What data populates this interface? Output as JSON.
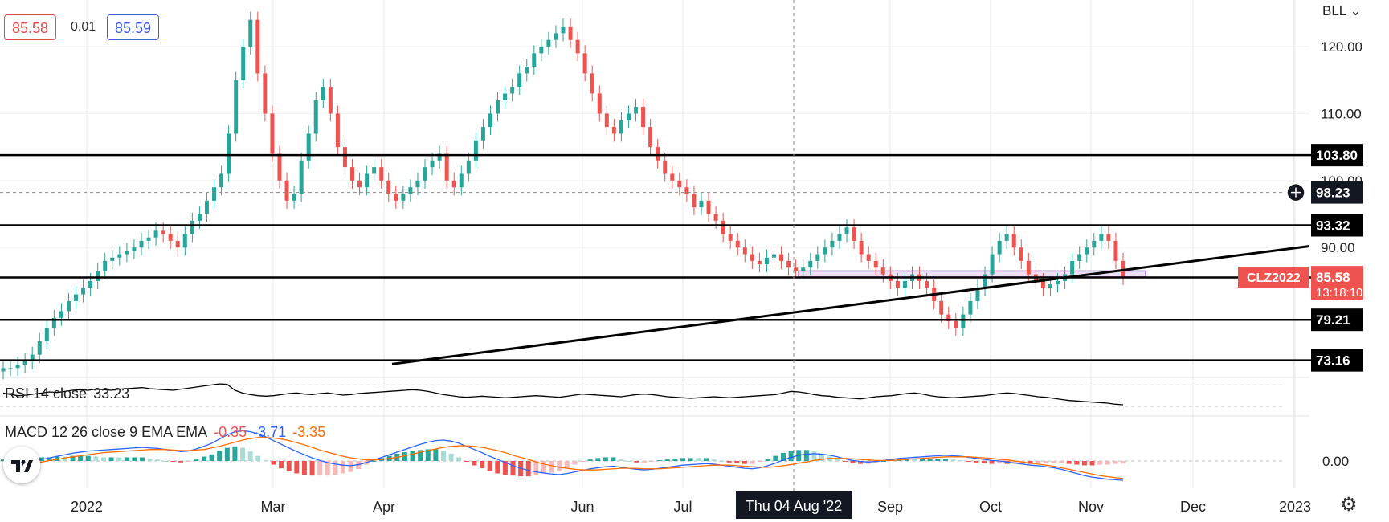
{
  "header": {
    "bid": "85.58",
    "spread": "0.01",
    "ask": "85.59",
    "axis_menu": "BLL"
  },
  "indicators": {
    "rsi_label": "RSI 14 close",
    "rsi_value": "33.23",
    "macd_label": "MACD 12 26 close 9 EMA EMA",
    "macd_hist": "-0.35",
    "macd_line": "-3.71",
    "macd_signal": "-3.35",
    "macd_zero": "0.00"
  },
  "colors": {
    "up": "#26a69a",
    "down": "#ef5350",
    "macd": "#2962ff",
    "signal": "#ff6d00",
    "zone": "#b36adf"
  },
  "chart_data": {
    "type": "candlestick",
    "symbol": "CLZ2022",
    "y_range": [
      70.6,
      126.0
    ],
    "y_ticks": [
      "120.00",
      "110.00",
      "100.00",
      "90.00"
    ],
    "x_labels": [
      "2022",
      "Mar",
      "Apr",
      "Jun",
      "Jul",
      "Sep",
      "Oct",
      "Nov",
      "Dec",
      "2023"
    ],
    "crosshair_label": "Thu 04 Aug '22",
    "last_price": "85.58",
    "countdown": "13:18:10",
    "levels": [
      {
        "label": "103.80",
        "value": 103.8
      },
      {
        "label": "93.32",
        "value": 93.32
      },
      {
        "label": "85.53",
        "value": 85.53
      },
      {
        "label": "79.21",
        "value": 79.21
      },
      {
        "label": "73.16",
        "value": 73.16
      }
    ],
    "crosshair_price": "98.23",
    "support_zone": [
      85.6,
      86.5
    ],
    "trendline": [
      [
        0.0,
        72.6
      ],
      [
        1.0,
        90.2
      ]
    ],
    "series_close": [
      72,
      72,
      72.5,
      73,
      74,
      76,
      78,
      79.5,
      80.5,
      82,
      83,
      84,
      85,
      86.5,
      88,
      88.5,
      89,
      89.5,
      90,
      91,
      91.5,
      92.5,
      92,
      91,
      90,
      92,
      94,
      95,
      97,
      99,
      101,
      107,
      115,
      120,
      124,
      116,
      110,
      104,
      100,
      97,
      98,
      103,
      107,
      112,
      114,
      110,
      105,
      102,
      100,
      99,
      101,
      102,
      100,
      98,
      97,
      98,
      99,
      100,
      102,
      103,
      104,
      100,
      99,
      101,
      103,
      106,
      108,
      110,
      112,
      113,
      114,
      116,
      117,
      119,
      120,
      121,
      122,
      123,
      121,
      119,
      116,
      113,
      110,
      108,
      107,
      109,
      110,
      111,
      108,
      105,
      103,
      101,
      100,
      99,
      98,
      96,
      97,
      95,
      94,
      92,
      91,
      90,
      89,
      88,
      87.5,
      88.5,
      89,
      88,
      87,
      86.5,
      87,
      88,
      89,
      90,
      91,
      92,
      93,
      91,
      89,
      88,
      87,
      86,
      85,
      84,
      85,
      86,
      85,
      84,
      82,
      80,
      79,
      78,
      80,
      82,
      84,
      86,
      89,
      91,
      92,
      90,
      88,
      86,
      85,
      84,
      84.5,
      85,
      86,
      88,
      89,
      90,
      91,
      92,
      91,
      88,
      85.6
    ],
    "rsi": [
      55,
      52,
      50,
      51,
      53,
      55,
      57,
      56,
      58,
      60,
      61,
      60,
      62,
      61,
      60,
      62,
      63,
      64,
      65,
      63,
      62,
      61,
      60,
      62,
      64,
      66,
      68,
      70,
      72,
      71,
      60,
      55,
      52,
      50,
      49,
      50,
      52,
      54,
      55,
      53,
      52,
      54,
      55,
      53,
      51,
      52,
      54,
      55,
      56,
      57,
      58,
      59,
      60,
      61,
      60,
      58,
      55,
      52,
      50,
      48,
      47,
      48,
      49,
      48,
      47,
      46,
      47,
      48,
      49,
      50,
      49,
      48,
      47,
      49,
      51,
      53,
      52,
      51,
      50,
      49,
      48,
      50,
      52,
      53,
      52,
      50,
      48,
      47,
      46,
      45,
      46,
      47,
      48,
      47,
      46,
      47,
      48,
      49,
      50,
      51,
      52,
      55,
      58,
      57,
      55,
      52,
      50,
      49,
      47,
      46,
      45,
      44,
      46,
      48,
      49,
      50,
      52,
      54,
      55,
      53,
      50,
      48,
      47,
      46,
      47,
      48,
      49,
      50,
      52,
      54,
      55,
      54,
      52,
      50,
      48,
      47,
      45,
      43,
      41,
      40,
      39,
      38,
      37,
      36,
      34,
      33
    ],
    "macd": [
      -1.0,
      -0.8,
      -0.5,
      -0.3,
      0.0,
      0.3,
      0.6,
      0.9,
      1.2,
      1.5,
      1.7,
      1.9,
      2.0,
      2.1,
      2.2,
      2.3,
      2.4,
      2.5,
      2.6,
      2.5,
      2.4,
      2.2,
      2.0,
      1.8,
      1.9,
      2.3,
      2.8,
      3.4,
      4.2,
      5.0,
      5.6,
      5.8,
      5.6,
      5.2,
      4.6,
      3.9,
      3.2,
      2.5,
      1.8,
      1.2,
      0.6,
      0.1,
      -0.3,
      -0.6,
      -0.8,
      -0.9,
      -0.7,
      -0.3,
      0.2,
      0.7,
      1.2,
      1.7,
      2.2,
      2.7,
      3.2,
      3.6,
      3.9,
      4.0,
      3.8,
      3.4,
      2.8,
      2.2,
      1.6,
      0.9,
      0.3,
      -0.3,
      -0.9,
      -1.4,
      -1.8,
      -2.1,
      -2.3,
      -2.5,
      -2.6,
      -2.4,
      -2.1,
      -1.8,
      -1.5,
      -1.3,
      -1.1,
      -1.0,
      -1.2,
      -1.4,
      -1.6,
      -1.7,
      -1.6,
      -1.4,
      -1.2,
      -1.0,
      -0.8,
      -0.7,
      -0.6,
      -0.5,
      -0.6,
      -0.8,
      -1.0,
      -1.2,
      -1.4,
      -1.5,
      -1.3,
      -0.9,
      -0.4,
      0.2,
      0.7,
      1.1,
      1.3,
      1.4,
      1.3,
      1.1,
      0.8,
      0.4,
      0.1,
      -0.1,
      -0.2,
      -0.1,
      0.1,
      0.3,
      0.5,
      0.6,
      0.7,
      0.8,
      0.9,
      1.0,
      1.1,
      1.0,
      0.9,
      0.7,
      0.5,
      0.3,
      0.1,
      0.0,
      -0.2,
      -0.4,
      -0.6,
      -0.8,
      -0.9,
      -1.1,
      -1.3,
      -1.6,
      -2.0,
      -2.4,
      -2.8,
      -3.1,
      -3.3,
      -3.5,
      -3.6,
      -3.71
    ],
    "signal": [
      -1.2,
      -1.0,
      -0.8,
      -0.6,
      -0.4,
      -0.2,
      0.1,
      0.3,
      0.6,
      0.8,
      1.0,
      1.2,
      1.4,
      1.6,
      1.7,
      1.8,
      1.9,
      2.0,
      2.1,
      2.2,
      2.2,
      2.2,
      2.1,
      2.0,
      2.0,
      2.1,
      2.2,
      2.5,
      2.8,
      3.2,
      3.6,
      4.0,
      4.3,
      4.5,
      4.5,
      4.4,
      4.2,
      3.9,
      3.5,
      3.1,
      2.6,
      2.1,
      1.7,
      1.3,
      0.9,
      0.6,
      0.4,
      0.2,
      0.2,
      0.3,
      0.5,
      0.7,
      1.0,
      1.3,
      1.7,
      2.0,
      2.3,
      2.6,
      2.8,
      2.9,
      2.9,
      2.8,
      2.6,
      2.3,
      2.0,
      1.6,
      1.1,
      0.7,
      0.3,
      -0.2,
      -0.6,
      -0.9,
      -1.2,
      -1.4,
      -1.6,
      -1.7,
      -1.7,
      -1.7,
      -1.6,
      -1.5,
      -1.4,
      -1.4,
      -1.4,
      -1.5,
      -1.5,
      -1.5,
      -1.4,
      -1.3,
      -1.2,
      -1.1,
      -1.0,
      -0.9,
      -0.8,
      -0.8,
      -0.8,
      -0.9,
      -1.0,
      -1.1,
      -1.2,
      -1.2,
      -1.1,
      -0.9,
      -0.7,
      -0.4,
      -0.2,
      0.1,
      0.3,
      0.5,
      0.5,
      0.5,
      0.4,
      0.3,
      0.2,
      0.1,
      0.1,
      0.1,
      0.2,
      0.3,
      0.4,
      0.5,
      0.6,
      0.7,
      0.8,
      0.8,
      0.8,
      0.8,
      0.7,
      0.6,
      0.5,
      0.3,
      0.2,
      0.0,
      -0.2,
      -0.4,
      -0.6,
      -0.8,
      -1.0,
      -1.3,
      -1.6,
      -1.9,
      -2.2,
      -2.5,
      -2.8,
      -3.0,
      -3.2,
      -3.35
    ]
  }
}
